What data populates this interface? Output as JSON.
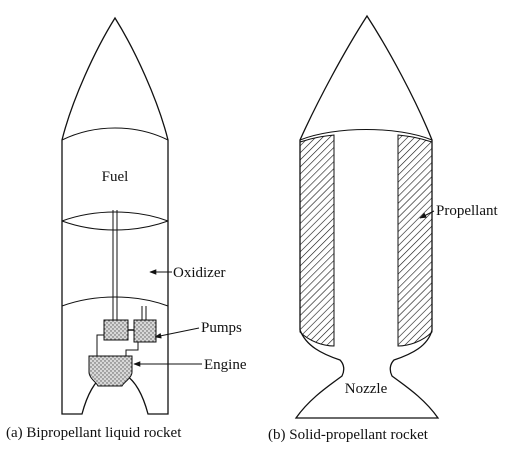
{
  "labels": {
    "fuel": "Fuel",
    "oxidizer": "Oxidizer",
    "pumps": "Pumps",
    "engine": "Engine",
    "propellant": "Propellant",
    "nozzle": "Nozzle"
  },
  "captions": {
    "left": "(a) Bipropellant liquid rocket",
    "right": "(b) Solid-propellant rocket"
  }
}
